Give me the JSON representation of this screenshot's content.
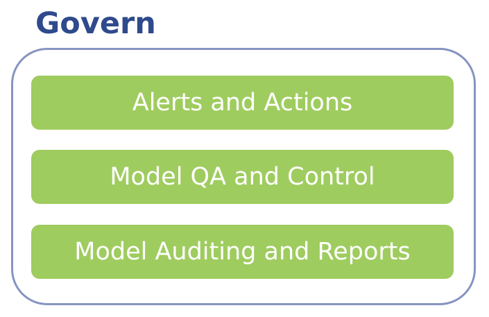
{
  "title": "Govern",
  "items": [
    {
      "label": "Alerts and Actions"
    },
    {
      "label": "Model QA and Control"
    },
    {
      "label": "Model Auditing and Reports"
    }
  ],
  "colors": {
    "title": "#2f4a8c",
    "frame_border": "#8794c0",
    "item_fill": "#9fcc5f",
    "item_text": "#ffffff"
  }
}
